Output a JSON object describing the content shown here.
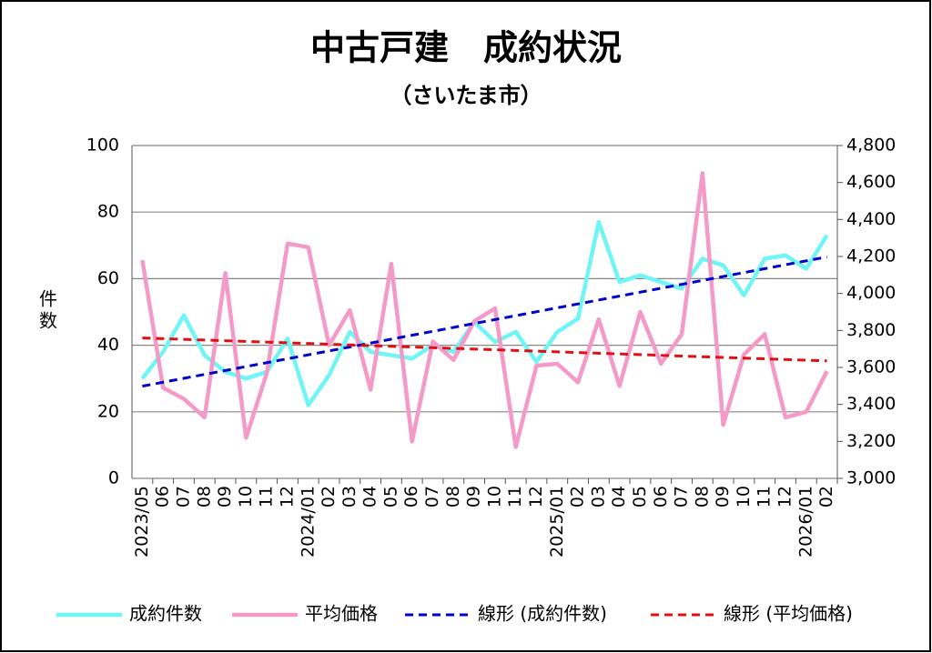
{
  "chart_data": {
    "type": "line",
    "title": "中古戸建　成約状況",
    "subtitle": "（さいたま市）",
    "ylabel": "件数",
    "categories": [
      "2023/05",
      "06",
      "07",
      "08",
      "09",
      "10",
      "11",
      "12",
      "2024/01",
      "02",
      "03",
      "04",
      "05",
      "06",
      "07",
      "08",
      "09",
      "10",
      "11",
      "12",
      "2025/01",
      "02",
      "03",
      "04",
      "05",
      "06",
      "07",
      "08",
      "09",
      "10",
      "11",
      "12",
      "2026/01",
      "02"
    ],
    "ylim": [
      0,
      100
    ],
    "yticks": [
      0,
      20,
      40,
      60,
      80,
      100
    ],
    "y2lim": [
      3000,
      4800
    ],
    "y2ticks": [
      {
        "value": 3000,
        "label": "3,000"
      },
      {
        "value": 3200,
        "label": "3,200"
      },
      {
        "value": 3400,
        "label": "3,400"
      },
      {
        "value": 3600,
        "label": "3,600"
      },
      {
        "value": 3800,
        "label": "3,800"
      },
      {
        "value": 4000,
        "label": "4,000"
      },
      {
        "value": 4200,
        "label": "4,200"
      },
      {
        "value": 4400,
        "label": "4,400"
      },
      {
        "value": 4600,
        "label": "4,600"
      },
      {
        "value": 4800,
        "label": "4,800"
      }
    ],
    "grid": true,
    "legend": "bottom",
    "series": [
      {
        "name": "成約件数",
        "color": "#6ff5f5",
        "values": [
          30,
          38,
          49,
          37,
          32,
          30,
          32,
          42,
          22,
          31,
          44,
          38,
          37,
          36,
          40,
          38,
          47,
          41,
          44,
          35,
          44,
          48,
          77,
          59,
          61,
          59,
          57,
          66,
          64,
          55,
          66,
          67,
          63,
          73
        ]
      },
      {
        "name": "平均価格",
        "color": "#f49ac8",
        "axis": "y2",
        "values": [
          4180,
          3490,
          3430,
          3330,
          4110,
          3220,
          3570,
          4270,
          4250,
          3720,
          3910,
          3480,
          4160,
          3200,
          3740,
          3640,
          3850,
          3920,
          3170,
          3610,
          3620,
          3520,
          3860,
          3500,
          3900,
          3620,
          3780,
          4650,
          3290,
          3670,
          3780,
          3330,
          3360,
          3580
        ]
      },
      {
        "name": "線形 (成約件数)",
        "color": "#0000cc",
        "dashed": true,
        "trend_of": 0
      },
      {
        "name": "線形 (平均価格)",
        "color": "#e01010",
        "dashed": true,
        "trend_of": 1,
        "axis": "y2"
      }
    ]
  }
}
